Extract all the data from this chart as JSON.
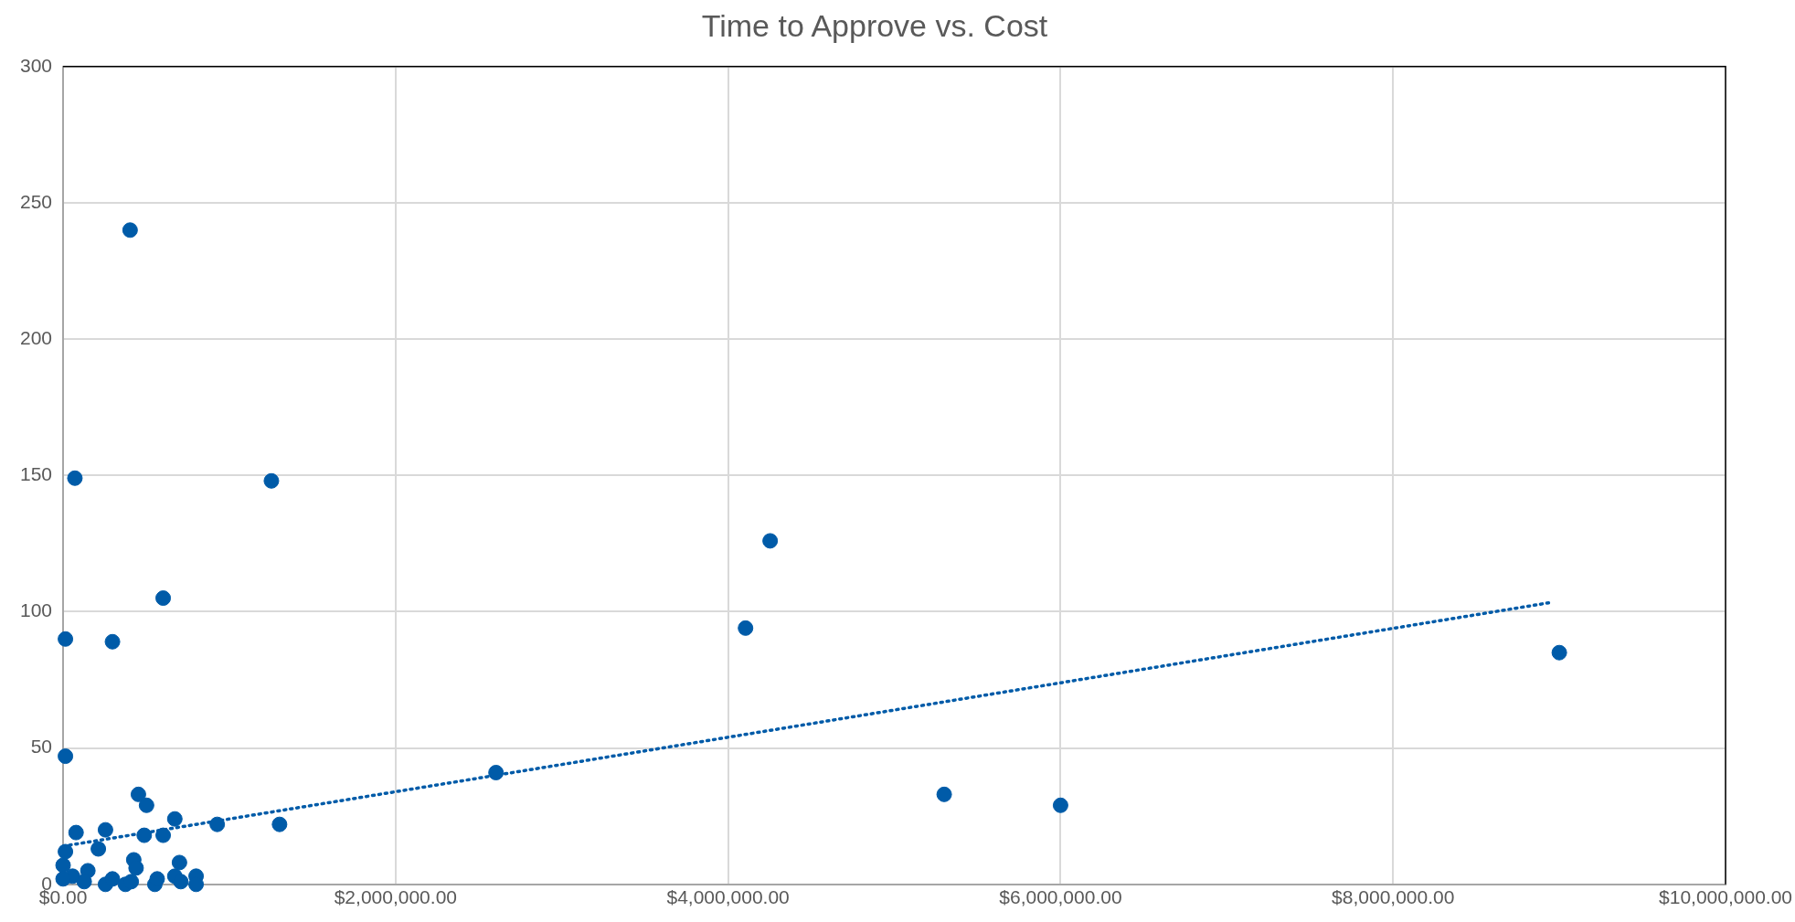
{
  "chart_data": {
    "type": "scatter",
    "title": "Time to Approve vs. Cost",
    "xlim": [
      0,
      10000000
    ],
    "xticks": [
      {
        "value": 0,
        "label": "$0.00"
      },
      {
        "value": 2000000,
        "label": "$2,000,000.00"
      },
      {
        "value": 4000000,
        "label": "$4,000,000.00"
      },
      {
        "value": 6000000,
        "label": "$6,000,000.00"
      },
      {
        "value": 8000000,
        "label": "$8,000,000.00"
      },
      {
        "value": 10000000,
        "label": "$10,000,000.00"
      }
    ],
    "ylim": [
      0,
      300
    ],
    "yticks": [
      0,
      50,
      100,
      150,
      200,
      250,
      300
    ],
    "grid": true,
    "legend": false,
    "series": [
      {
        "color": "#005ba8",
        "marker": "circle",
        "x": [
          403000,
          71000,
          1253000,
          602000,
          14000,
          297000,
          4253000,
          4105000,
          9000000,
          2604000,
          5300000,
          6000000,
          14000,
          453000,
          502000,
          672000,
          927000,
          1302000,
          78000,
          255000,
          488000,
          602000,
          212000,
          14000,
          0,
          425000,
          439000,
          700000,
          149000,
          800000,
          672000,
          57000,
          0,
          255000,
          297000,
          375000,
          410000,
          552000,
          566000,
          708000,
          800000,
          127000
        ],
        "values": [
          240,
          149,
          148,
          105,
          90,
          89,
          126,
          94,
          85,
          41,
          33,
          29,
          47,
          33,
          29,
          24,
          22,
          22,
          19,
          20,
          18,
          18,
          13,
          12,
          7,
          9,
          6,
          8,
          5,
          3,
          3,
          3,
          2,
          0,
          2,
          0,
          1,
          0,
          2,
          1,
          0,
          1
        ]
      },
      {
        "type": "line",
        "color": "#005ba8",
        "marker": "none",
        "line_style": "dotted",
        "x": [
          0,
          8960000
        ],
        "values": [
          14,
          103.5
        ]
      }
    ]
  }
}
